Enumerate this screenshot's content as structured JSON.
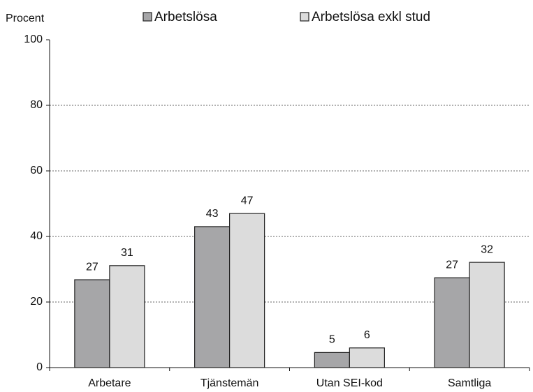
{
  "chart_data": {
    "type": "bar",
    "y_label": "Procent",
    "categories": [
      "Arbetare",
      "Tjänstemän",
      "Utan SEI-kod",
      "Samtliga"
    ],
    "series": [
      {
        "name": "Arbetslösa",
        "color": "#a6a6a8",
        "values": [
          26.8,
          43,
          4.6,
          27.4
        ],
        "value_labels": [
          "27",
          "43",
          "5",
          "27"
        ]
      },
      {
        "name": "Arbetslösa exkl stud",
        "color": "#dcdcdc",
        "values": [
          31.1,
          47,
          6,
          32.1
        ],
        "value_labels": [
          "31",
          "47",
          "6",
          "32"
        ]
      }
    ],
    "ylim": [
      0,
      100
    ],
    "yticks": [
      0,
      20,
      40,
      60,
      80,
      100
    ],
    "grid": true,
    "legend": "top"
  }
}
